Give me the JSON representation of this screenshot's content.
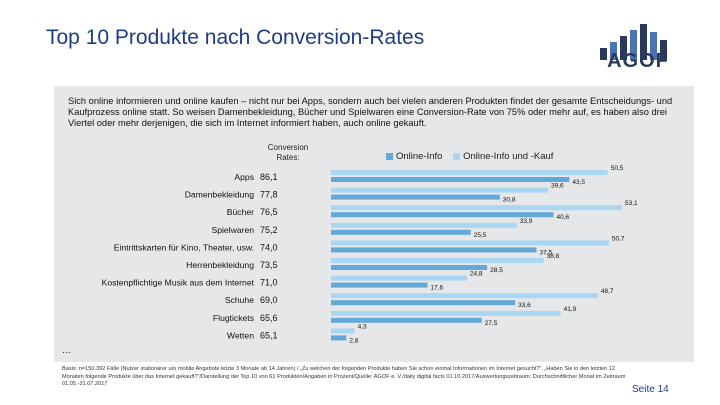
{
  "header": {
    "title": "Top 10 Produkte nach Conversion-Rates",
    "logo_text": "AGOF"
  },
  "intro": "Sich online informieren und online kaufen – nicht nur bei Apps, sondern auch bei vielen anderen Produkten findet der gesamte Entscheidungs- und Kaufprozess online statt. So weisen Damenbekleidung, Bücher und Spielwaren eine Conversion-Rate von 75% oder mehr auf, es haben also drei Viertel oder mehr derjenigen, die sich im Internet informiert haben, auch online gekauft.",
  "colors": {
    "accent": "#1f3c88",
    "info": "#62a8d9",
    "info_kauf": "#a9d6f2",
    "frame": "#e6e7e8"
  },
  "chart_data": {
    "type": "bar",
    "conversion_header": "Conversion Rates:",
    "categories": [
      "Apps",
      "Damenbekleidung",
      "Bücher",
      "Spielwaren",
      "Eintrittskarten für Kino, Theater, usw.",
      "Herrenbekleidung",
      "Kostenpflichtige Musik aus dem Internet",
      "Schuhe",
      "Flugtickets",
      "Wetten"
    ],
    "conversion_rates": [
      "86,1",
      "77,8",
      "76,5",
      "75,2",
      "74,0",
      "73,5",
      "71,0",
      "69,0",
      "65,6",
      "65,1"
    ],
    "series": [
      {
        "name": "Online-Info und -Kauf",
        "values": [
          50.5,
          39.6,
          53.1,
          33.9,
          50.7,
          38.8,
          24.8,
          48.7,
          41.9,
          4.3
        ],
        "labels": [
          "50,5",
          "39,6",
          "53,1",
          "33,9",
          "50,7",
          "38,8",
          "24,8",
          "48,7",
          "41,9",
          "4,3"
        ]
      },
      {
        "name": "Online-Info",
        "values": [
          43.5,
          30.8,
          40.6,
          25.5,
          37.5,
          28.5,
          17.6,
          33.6,
          27.5,
          2.8
        ],
        "labels": [
          "43,5",
          "30,8",
          "40,6",
          "25,5",
          "37,5",
          "28,5",
          "17,6",
          "33,6",
          "27,5",
          "2,8"
        ]
      }
    ],
    "legend": [
      "Online-Info",
      "Online-Info und -Kauf"
    ],
    "xlim": [
      0,
      55
    ]
  },
  "ellipsis": "...",
  "footer": "Basis: n=150.392 Fälle (Nutzer stationärer u/o mobile Angebote letzte 3 Monate ab 14 Jahren) / „Zu welchen der folgenden Produkte haben Sie schon einmal Informationen im Internet gesucht?“, „Haben Sie in den letzten 12 Monaten folgende Produkte über das Internet gekauft?“/Darstellung der Top 10 von 61 Produkten/Angaben in Prozent/Quelle: AGOF e. V./daily digital facts 01.10.2017/Auswertungszeitraum: Durchschnittlicher Monat im Zeitraum 01.05.-31.07.2017",
  "page": "Seite 14"
}
